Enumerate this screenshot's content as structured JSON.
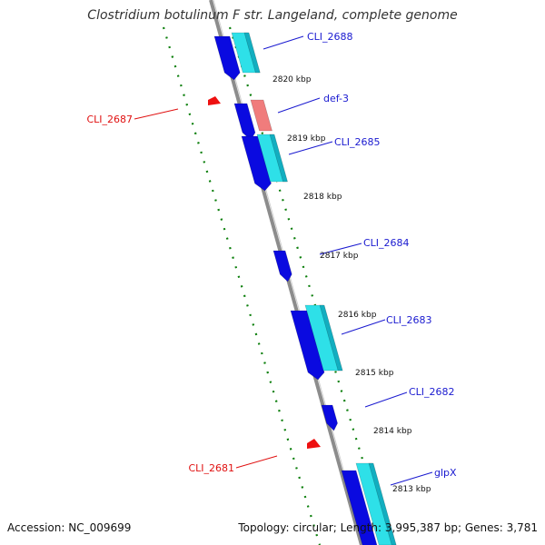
{
  "title": "Clostridium botulinum F str. Langeland, complete genome",
  "footer": {
    "accession": "Accession: NC_009699",
    "topology": "Topology: circular; Length: 3,995,387 bp; Genes: 3,781"
  },
  "ruler_labels": [
    {
      "text": "2820 kbp"
    },
    {
      "text": "2819 kbp"
    },
    {
      "text": "2818 kbp"
    },
    {
      "text": "2817 kbp"
    },
    {
      "text": "2816 kbp"
    },
    {
      "text": "2815 kbp"
    },
    {
      "text": "2814 kbp"
    },
    {
      "text": "2813 kbp"
    }
  ],
  "gene_labels": [
    {
      "text": "CLI_2688",
      "color": "#1a1ad0"
    },
    {
      "text": "def-3",
      "color": "#1a1ad0"
    },
    {
      "text": "CLI_2685",
      "color": "#1a1ad0"
    },
    {
      "text": "CLI_2684",
      "color": "#1a1ad0"
    },
    {
      "text": "CLI_2683",
      "color": "#1a1ad0"
    },
    {
      "text": "CLI_2682",
      "color": "#1a1ad0"
    },
    {
      "text": "glpX",
      "color": "#1a1ad0"
    },
    {
      "text": "CLI_2687",
      "color": "#e01010"
    },
    {
      "text": "CLI_2681",
      "color": "#e01010"
    }
  ],
  "colors": {
    "cds_track": "#0a0ae0",
    "cds_cyan": "#2ee0e8",
    "cds_cyan_dark": "#12aec0",
    "trna": "#ee1010",
    "rrna": "#f07c7c",
    "dotted_track": "#0c7f0c",
    "backbone": "#8c8c8c"
  }
}
